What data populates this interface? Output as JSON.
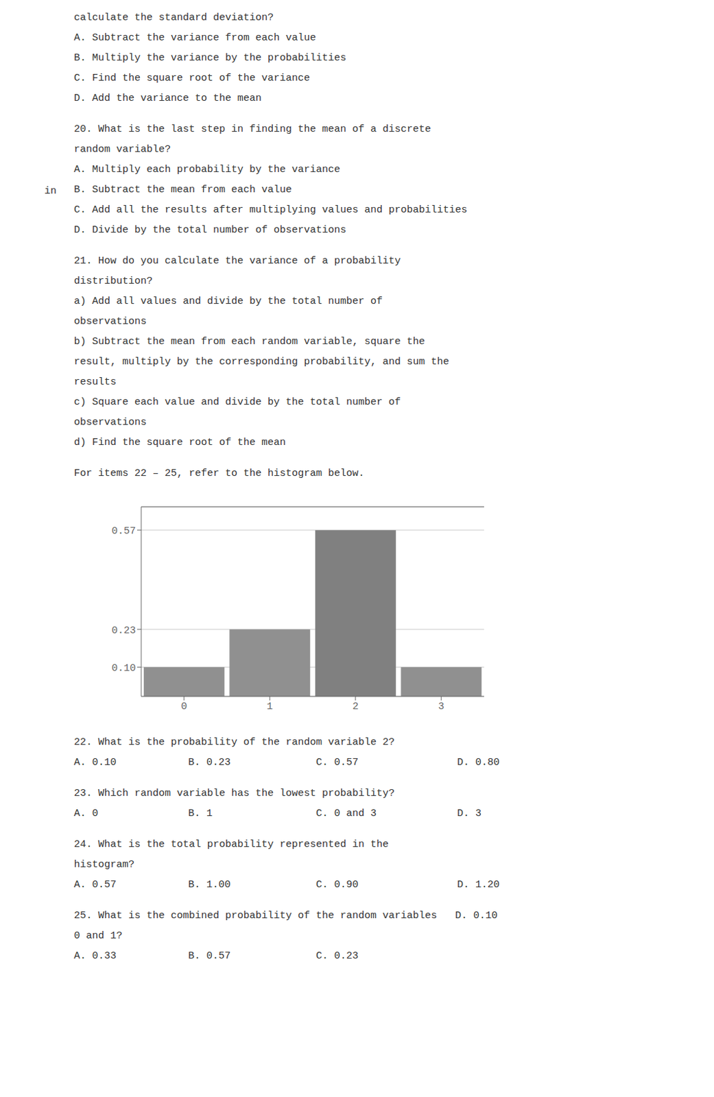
{
  "chart_data": {
    "type": "bar",
    "categories": [
      "0",
      "1",
      "2",
      "3"
    ],
    "values": [
      0.1,
      0.23,
      0.57,
      0.1
    ],
    "colors": [
      "#909090",
      "#909090",
      "#808080",
      "#909090"
    ],
    "ylim": [
      0,
      0.65
    ],
    "yticks": [
      {
        "value": 0.1,
        "label": "0.10"
      },
      0.23,
      0.57
    ],
    "grid": true,
    "annotations": [
      [
        [
          "calculate the standard deviation?"
        ],
        [
          "A. Subtract the variance from each value"
        ],
        [
          "B. Multiply the variance by the probabilities"
        ],
        [
          "C. Find the square root of the variance"
        ],
        [
          "D. Add the variance to the mean"
        ]
      ],
      [
        [
          "20. What is the last step in finding the mean of a discrete"
        ],
        [
          "random variable?"
        ],
        [
          "A. Multiply each probability by the variance"
        ],
        [
          "in",
          "B. Subtract the mean from each value"
        ],
        [
          "C. Add all the results after multiplying values and probabilities"
        ],
        [
          "D. Divide by the total number of observations"
        ]
      ],
      [
        [
          "21. How do you calculate the variance of a probability"
        ],
        [
          "distribution?"
        ],
        [
          "a) Add all values and divide by the total number of"
        ],
        [
          "observations"
        ],
        [
          "b) Subtract the mean from each random variable, square the"
        ],
        [
          "result, multiply by the corresponding probability, and sum the"
        ],
        [
          "results"
        ],
        [
          "c) Square each value and divide by the total number of"
        ],
        [
          "observations"
        ],
        [
          "d) Find the square root of the mean"
        ]
      ],
      [
        [
          "For items 22 – 25, refer to the histogram below."
        ]
      ],
      [
        [
          "22. What is the probability of the random variable 2?"
        ],
        [
          "A. 0.10",
          "B. 0.23",
          "C. 0.57",
          "D. 0.80"
        ]
      ],
      [
        [
          "23. Which random variable has the lowest probability?"
        ],
        [
          "A. 0",
          "B. 1",
          "C. 0 and 3",
          "D. 3"
        ]
      ],
      [
        [
          "24. What is the total probability represented in the"
        ],
        [
          "histogram?"
        ],
        [
          "A. 0.57",
          "B. 1.00",
          "C. 0.90",
          "D. 1.20"
        ]
      ],
      [
        [
          "25. What is the combined probability of the random variables",
          "D. 0.10"
        ],
        [
          "0 and 1?"
        ],
        [
          "A. 0.33",
          "B. 0.57",
          "C. 0.23"
        ]
      ]
    ]
  }
}
